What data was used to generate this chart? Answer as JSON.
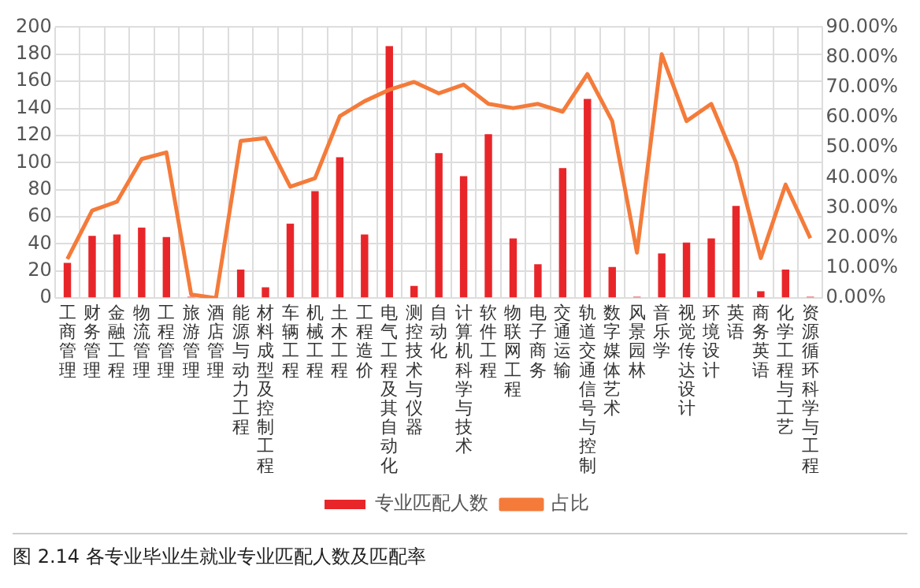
{
  "chart_data": {
    "type": "bar",
    "title": "图 2.14 各专业毕业生就业专业匹配人数及匹配率",
    "categories": [
      "工商管理",
      "财务管理",
      "金融工程",
      "物流管理",
      "工程管理",
      "旅游管理",
      "酒店管理",
      "能源与动力工程",
      "材料成型及控制工程",
      "车辆工程",
      "机械工程",
      "土木工程",
      "工程造价",
      "电气工程及其自动化",
      "测控技术与仪器",
      "自动化",
      "计算机科学与技术",
      "软件工程",
      "物联网工程",
      "电子商务",
      "交通运输",
      "轨道交通信号与控制",
      "数字媒体艺术",
      "风景园林",
      "音乐学",
      "视觉传达设计",
      "环境设计",
      "英语",
      "商务英语",
      "化学工程与工艺",
      "资源循环科学与工程"
    ],
    "series": [
      {
        "name": "专业匹配人数",
        "color": "#e8262a",
        "values": [
          26,
          46,
          47,
          52,
          45,
          1,
          0,
          21,
          8,
          55,
          79,
          104,
          47,
          186,
          9,
          107,
          90,
          121,
          44,
          25,
          96,
          147,
          23,
          1,
          33,
          41,
          44,
          68,
          5,
          21,
          1
        ]
      },
      {
        "name": "占比",
        "type": "line",
        "axis": "y2",
        "color": "#f47b3a",
        "values": [
          13.0,
          29.1,
          32.0,
          46.2,
          48.4,
          1.2,
          0,
          52.2,
          53.1,
          37.0,
          39.8,
          60.4,
          65.4,
          69.2,
          71.8,
          68.0,
          70.9,
          64.5,
          63.1,
          64.5,
          61.9,
          74.4,
          58.8,
          15.1,
          81.0,
          58.8,
          64.5,
          45.0,
          13.3,
          37.7,
          19.9
        ]
      }
    ],
    "ylim": [
      0,
      200
    ],
    "yticks": [
      0,
      20,
      40,
      60,
      80,
      100,
      120,
      140,
      160,
      180,
      200
    ],
    "y2lim": [
      0,
      90
    ],
    "y2ticks": [
      {
        "value": 0,
        "label": "0.00%"
      },
      {
        "value": 10,
        "label": "10.00%"
      },
      {
        "value": 20,
        "label": "20.00%"
      },
      {
        "value": 30,
        "label": "30.00%"
      },
      {
        "value": 40,
        "label": "40.00%"
      },
      {
        "value": 50,
        "label": "50.00%"
      },
      {
        "value": 60,
        "label": "60.00%"
      },
      {
        "value": 70,
        "label": "70.00%"
      },
      {
        "value": 80,
        "label": "80.00%"
      },
      {
        "value": 90,
        "label": "90.00%"
      }
    ],
    "grid": true,
    "legend": "bottom",
    "marker": "none"
  }
}
